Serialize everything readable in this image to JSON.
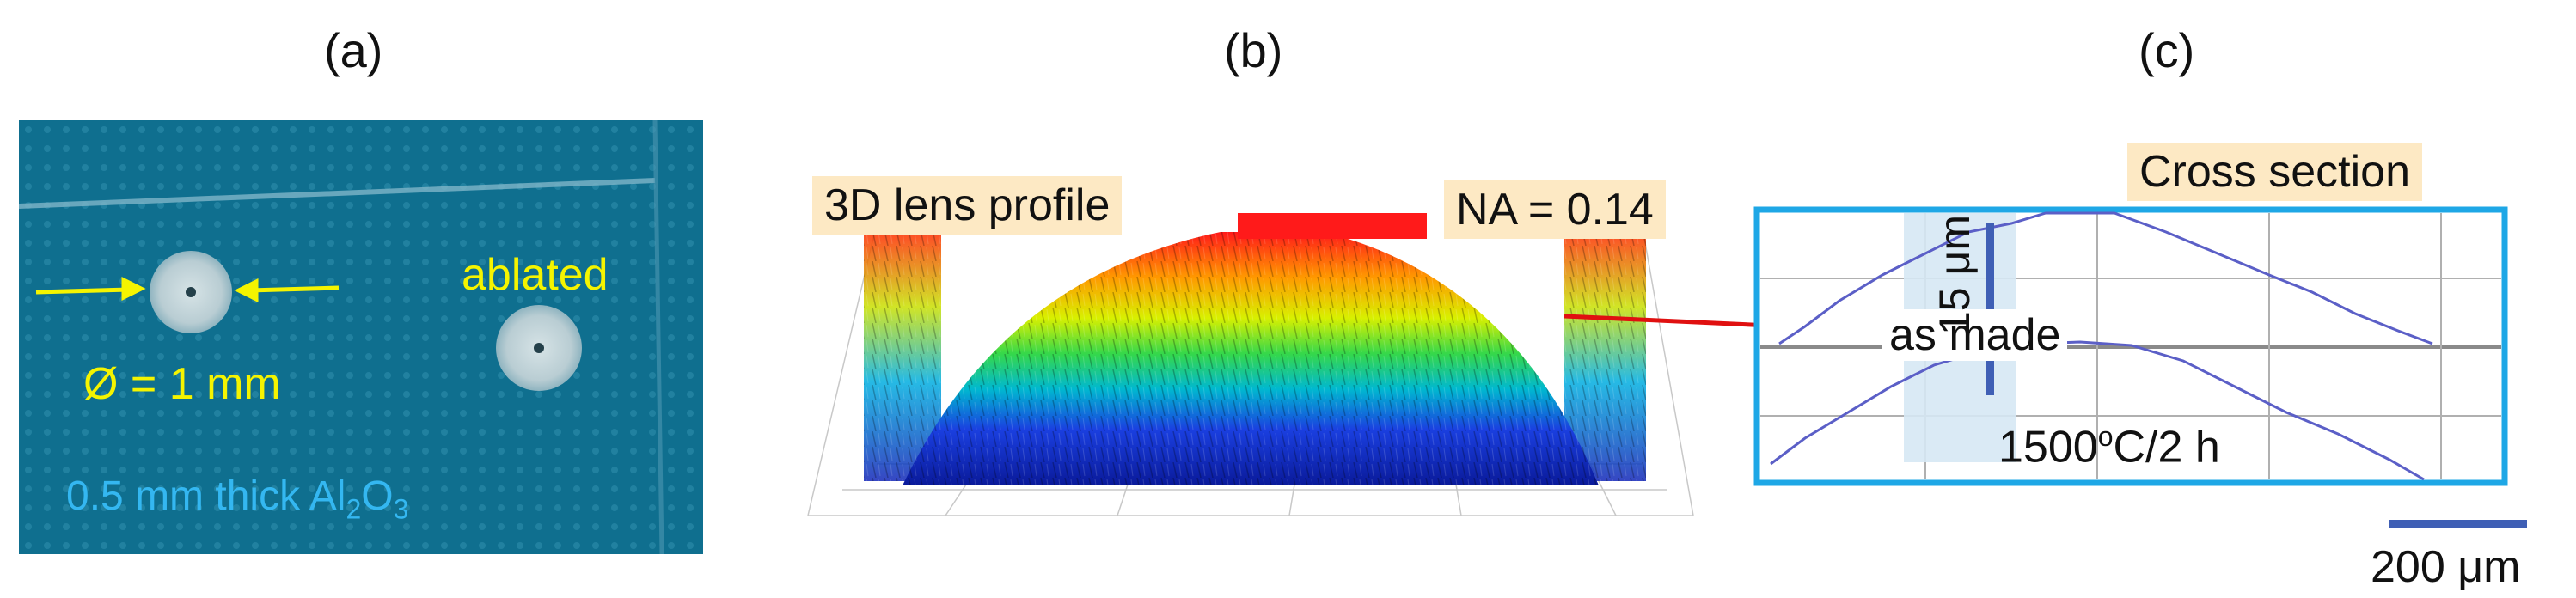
{
  "panels": {
    "a": {
      "label": "(a)",
      "ablated": "ablated",
      "diameter": "Ø = 1 mm",
      "thickness_prefix": "0.5 mm thick Al",
      "thickness_sub1": "2",
      "thickness_mid": "O",
      "thickness_sub2": "3",
      "colors": {
        "background": "#0f6f8f",
        "text_yellow": "#f5f400",
        "text_blue": "#34b7f1"
      }
    },
    "b": {
      "label": "(b)",
      "profile_tag": "3D lens profile",
      "na_tag": "NA = 0.14"
    },
    "c": {
      "label": "(c)",
      "cross_section": "Cross section",
      "as_made": "as made",
      "anneal_prefix": "1500",
      "anneal_sup": "o",
      "anneal_suffix": "C/2 h",
      "scale_vertical": "15 μm",
      "scale_bar": "200 μm",
      "colors": {
        "frame": "#1ea7e6",
        "trace": "#5b5fc7",
        "scalebar": "#3f5fb5"
      }
    }
  }
}
